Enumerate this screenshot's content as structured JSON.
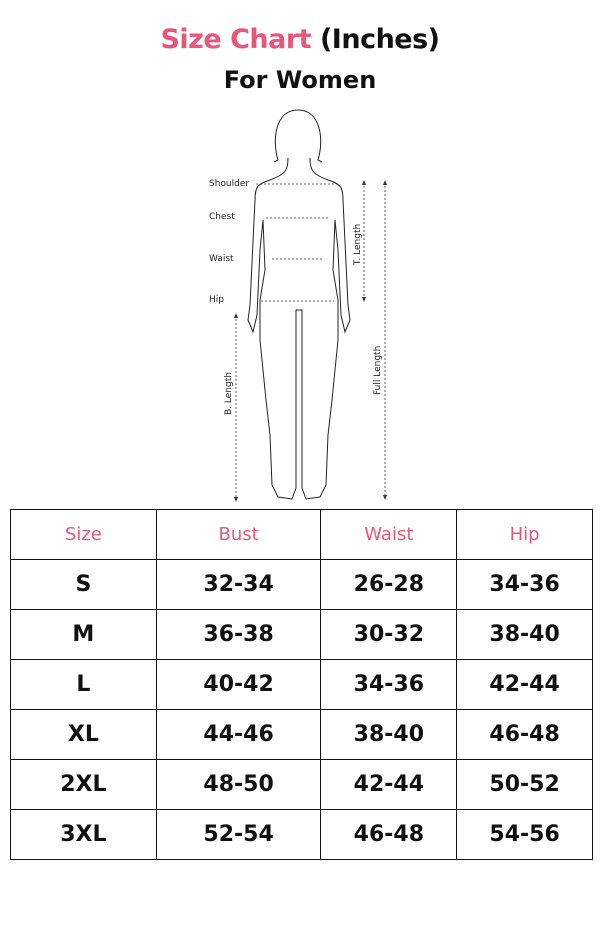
{
  "title": {
    "highlight": "Size Chart",
    "rest": " (Inches)"
  },
  "subtitle": "For Women",
  "figure": {
    "labels": [
      "Shoulder",
      "Chest",
      "Waist",
      "Hip"
    ],
    "t_length": "T. Length",
    "b_length": "B. Length",
    "full_length": "Full Length"
  },
  "table": {
    "headers": [
      "Size",
      "Bust",
      "Waist",
      "Hip"
    ],
    "rows": [
      [
        "S",
        "32-34",
        "26-28",
        "34-36"
      ],
      [
        "M",
        "36-38",
        "30-32",
        "38-40"
      ],
      [
        "L",
        "40-42",
        "34-36",
        "42-44"
      ],
      [
        "XL",
        "44-46",
        "38-40",
        "46-48"
      ],
      [
        "2XL",
        "48-50",
        "42-44",
        "50-52"
      ],
      [
        "3XL",
        "52-54",
        "46-48",
        "54-56"
      ]
    ]
  },
  "colors": {
    "accent": "#e8577a",
    "text": "#111111"
  }
}
